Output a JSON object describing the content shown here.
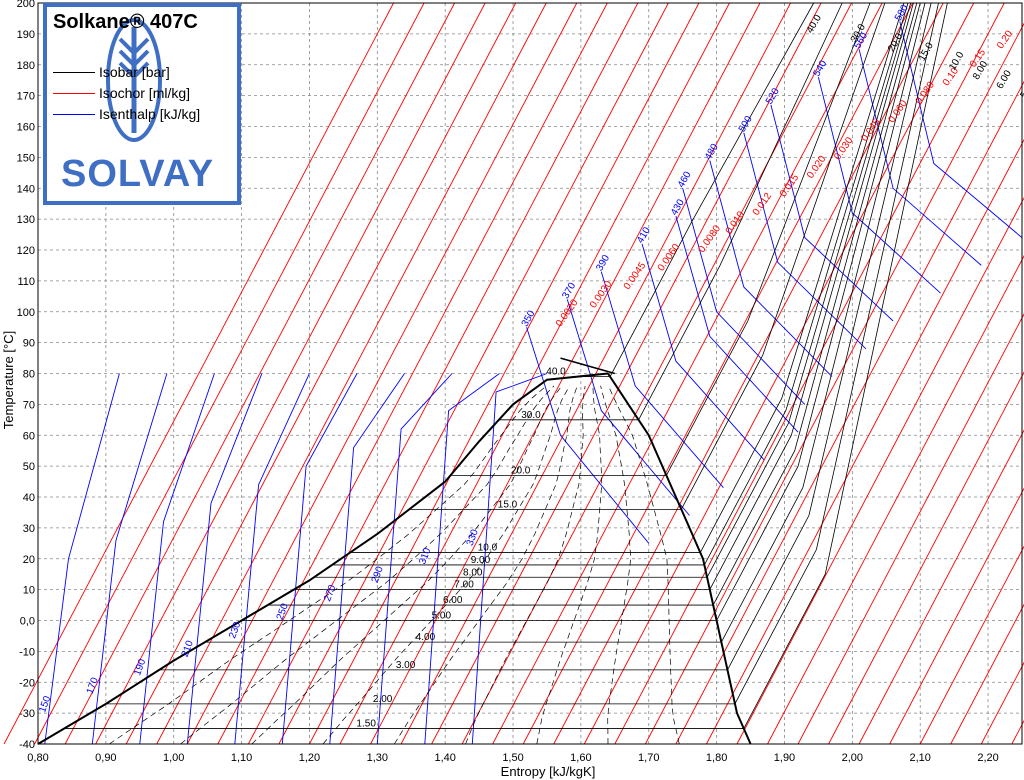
{
  "chart_data": {
    "type": "line",
    "title": "Solkane® 407C",
    "xlabel": "Entropy [kJ/kgK]",
    "ylabel": "Temperature [°C]",
    "xlim": [
      0.8,
      2.25
    ],
    "ylim": [
      -40,
      200
    ],
    "grid": true,
    "legend_position": "top-left",
    "x_ticks": [
      "0,80",
      "0,90",
      "1,00",
      "1,10",
      "1,20",
      "1,30",
      "1,40",
      "1,50",
      "1,60",
      "1,70",
      "1,80",
      "1,90",
      "2,00",
      "2,10",
      "2,20"
    ],
    "y_ticks": [
      "-40",
      "-30",
      "-20",
      "-10",
      "0,0",
      "10",
      "20",
      "30",
      "40",
      "50",
      "60",
      "70",
      "80",
      "90",
      "100",
      "110",
      "120",
      "130",
      "140",
      "150",
      "160",
      "170",
      "180",
      "190",
      "200"
    ],
    "legend": [
      {
        "name": "Isobar [bar]",
        "color": "#000000"
      },
      {
        "name": "Isochor [ml/kg]",
        "color": "#ff0000"
      },
      {
        "name": "Isenthalp [kJ/kg]",
        "color": "#0000ff"
      }
    ],
    "saturation": {
      "liquid": [
        [
          0.8,
          -40
        ],
        [
          0.9,
          -27
        ],
        [
          1.0,
          -13
        ],
        [
          1.1,
          0
        ],
        [
          1.2,
          13
        ],
        [
          1.3,
          28
        ],
        [
          1.4,
          45
        ],
        [
          1.45,
          58
        ],
        [
          1.5,
          70
        ],
        [
          1.55,
          78
        ],
        [
          1.64,
          80
        ]
      ],
      "vapor": [
        [
          1.64,
          80
        ],
        [
          1.67,
          70
        ],
        [
          1.7,
          60
        ],
        [
          1.72,
          50
        ],
        [
          1.74,
          40
        ],
        [
          1.76,
          30
        ],
        [
          1.78,
          20
        ],
        [
          1.79,
          10
        ],
        [
          1.8,
          0
        ],
        [
          1.81,
          -10
        ],
        [
          1.82,
          -20
        ],
        [
          1.83,
          -30
        ],
        [
          1.85,
          -40
        ]
      ],
      "critical_extension": [
        [
          1.57,
          85
        ],
        [
          1.65,
          80
        ]
      ]
    },
    "isobars": [
      {
        "label": "1.50",
        "tsat": -35
      },
      {
        "label": "2.00",
        "tsat": -27
      },
      {
        "label": "3.00",
        "tsat": -16
      },
      {
        "label": "4.00",
        "tsat": -7
      },
      {
        "label": "5.00",
        "tsat": 0
      },
      {
        "label": "6.00",
        "tsat": 5
      },
      {
        "label": "7.00",
        "tsat": 10
      },
      {
        "label": "8.00",
        "tsat": 14
      },
      {
        "label": "9.00",
        "tsat": 18
      },
      {
        "label": "10.0",
        "tsat": 22
      },
      {
        "label": "15.0",
        "tsat": 36
      },
      {
        "label": "20.0",
        "tsat": 47
      },
      {
        "label": "30.0",
        "tsat": 65
      },
      {
        "label": "40.0",
        "tsat": 79
      }
    ],
    "isenthalps_liquid": [
      "150",
      "170",
      "190",
      "210",
      "230",
      "250",
      "270",
      "290",
      "310",
      "330"
    ],
    "isenthalps_liquid_x": [
      0.83,
      0.9,
      0.97,
      1.04,
      1.11,
      1.18,
      1.25,
      1.32,
      1.39,
      1.46
    ],
    "isenthalps_vapor": [
      {
        "label": "350",
        "x": 1.52
      },
      {
        "label": "370",
        "x": 1.58
      },
      {
        "label": "390",
        "x": 1.63
      },
      {
        "label": "410",
        "x": 1.69
      },
      {
        "label": "430",
        "x": 1.74
      },
      {
        "label": "460",
        "x": 1.75
      },
      {
        "label": "480",
        "x": 1.79
      },
      {
        "label": "500",
        "x": 1.84
      },
      {
        "label": "520",
        "x": 1.88
      },
      {
        "label": "540",
        "x": 1.95
      },
      {
        "label": "560",
        "x": 2.01
      },
      {
        "label": "580",
        "x": 2.07
      }
    ],
    "isochors": [
      {
        "label": "0.0020",
        "s0": 1.55
      },
      {
        "label": "0.0030",
        "s0": 1.6
      },
      {
        "label": "0.0045",
        "s0": 1.65
      },
      {
        "label": "0.0060",
        "s0": 1.7
      },
      {
        "label": "0.0080",
        "s0": 1.76
      },
      {
        "label": "0.010",
        "s0": 1.8
      },
      {
        "label": "0.012",
        "s0": 1.84
      },
      {
        "label": "0.015",
        "s0": 1.88
      },
      {
        "label": "0.020",
        "s0": 1.92
      },
      {
        "label": "0.030",
        "s0": 1.96
      },
      {
        "label": "0.045",
        "s0": 2.0
      },
      {
        "label": "0.060",
        "s0": 2.04
      },
      {
        "label": "0.080",
        "s0": 2.08
      },
      {
        "label": "0.10",
        "s0": 2.12
      },
      {
        "label": "0.15",
        "s0": 2.16
      },
      {
        "label": "0.20",
        "s0": 2.2
      }
    ],
    "superheat_isobars": [
      {
        "label": "40.0",
        "x": 1.64
      },
      {
        "label": "30.0",
        "x": 1.69
      },
      {
        "label": "20.0",
        "x": 1.73
      },
      {
        "label": "15.0",
        "x": 1.76
      },
      {
        "label": "10.0",
        "x": 1.79
      },
      {
        "label": "8.00",
        "x": 1.81
      },
      {
        "label": "6.00",
        "x": 1.83
      },
      {
        "label": "5.00",
        "x": 1.85
      },
      {
        "label": "4.00",
        "x": 1.87
      },
      {
        "label": "3.00",
        "x": 1.9
      },
      {
        "label": "2.00",
        "x": 1.94
      },
      {
        "label": "1.50",
        "x": 1.97
      }
    ]
  },
  "legend_box": {
    "title": "Solkane® 407C",
    "brand": "SOLVAY",
    "items": [
      "Isobar [bar]",
      "Isochor [ml/kg]",
      "Isenthalp [kJ/kg]"
    ],
    "accent": "#3f6fc4"
  }
}
